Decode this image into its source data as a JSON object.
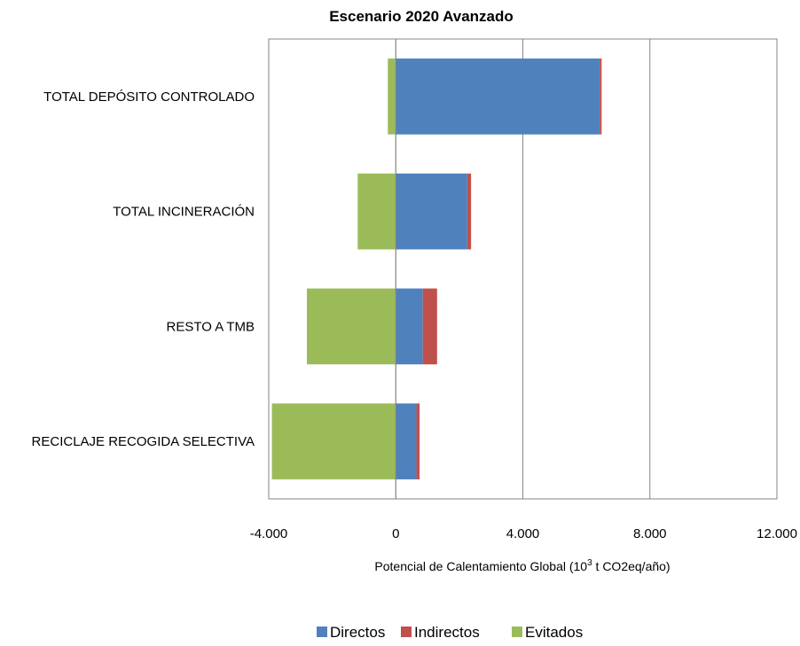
{
  "chart_data": {
    "type": "bar",
    "orientation": "horizontal",
    "stacked": true,
    "title": "Escenario 2020 Avanzado",
    "xlabel_prefix": "Potencial de Calentamiento Global (10",
    "xlabel_sup": "3",
    "xlabel_suffix": " t CO2eq/año)",
    "ylabel": "",
    "categories": [
      "TOTAL DEPÓSITO CONTROLADO",
      "TOTAL INCINERACIÓN",
      "RESTO A TMB",
      "RECICLAJE RECOGIDA SELECTIVA"
    ],
    "series": [
      {
        "name": "Directos",
        "color": "#4F81BD",
        "values": [
          6420,
          2250,
          850,
          650
        ]
      },
      {
        "name": "Indirectos",
        "color": "#C0504D",
        "values": [
          60,
          120,
          450,
          100
        ]
      },
      {
        "name": "Evitados",
        "color": "#9BBB59",
        "values": [
          -250,
          -1200,
          -2800,
          -3900
        ]
      }
    ],
    "xlim": [
      -4000,
      12000
    ],
    "xticks": [
      -4000,
      0,
      4000,
      8000,
      12000
    ],
    "xtick_labels": [
      "-4.000",
      "0",
      "4.000",
      "8.000",
      "12.000"
    ],
    "grid": true,
    "legend_position": "bottom"
  }
}
